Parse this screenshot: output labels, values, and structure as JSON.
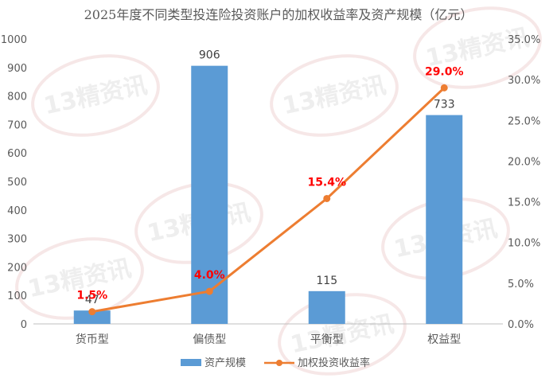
{
  "chart_data": {
    "type": "bar",
    "title": "2025年度不同类型投连险投资账户的加权收益率及资产规模（亿元）",
    "categories": [
      "货币型",
      "偏债型",
      "平衡型",
      "权益型"
    ],
    "series": [
      {
        "name": "资产规模",
        "type": "bar",
        "axis": "left",
        "values": [
          47,
          906,
          115,
          733
        ],
        "labels": [
          "47",
          "906",
          "115",
          "733"
        ],
        "color": "#5B9BD5"
      },
      {
        "name": "加权投资收益率",
        "type": "line",
        "axis": "right",
        "values": [
          1.5,
          4.0,
          15.4,
          29.0
        ],
        "labels": [
          "1.5%",
          "4.0%",
          "15.4%",
          "29.0%"
        ],
        "color": "#ED7D31",
        "label_color": "#FF0000"
      }
    ],
    "y_left": {
      "range": [
        0,
        1000
      ],
      "ticks": [
        "0",
        "100",
        "200",
        "300",
        "400",
        "500",
        "600",
        "700",
        "800",
        "900",
        "1000"
      ]
    },
    "y_right": {
      "range": [
        0,
        35
      ],
      "ticks": [
        "0.0%",
        "5.0%",
        "10.0%",
        "15.0%",
        "20.0%",
        "25.0%",
        "30.0%",
        "35.0%"
      ]
    },
    "grid": false,
    "legend_position": "bottom",
    "watermark_text": "13精资讯"
  }
}
